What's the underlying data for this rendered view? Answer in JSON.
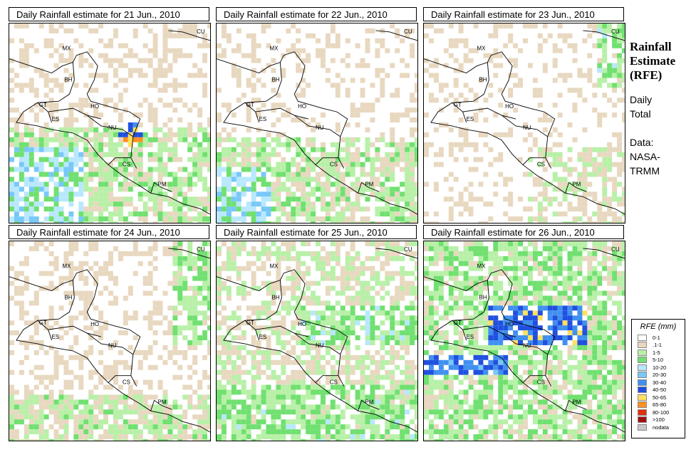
{
  "panels": [
    {
      "title": "Daily Rainfall estimate for  21 Jun., 2010",
      "variant": 1
    },
    {
      "title": "Daily Rainfall estimate for  22 Jun., 2010",
      "variant": 2
    },
    {
      "title": "Daily Rainfall estimate for  23 Jun., 2010",
      "variant": 3
    },
    {
      "title": "Daily Rainfall estimate for  24 Jun., 2010",
      "variant": 4
    },
    {
      "title": "Daily Rainfall estimate for  25 Jun., 2010",
      "variant": 5
    },
    {
      "title": "Daily Rainfall estimate for  26 Jun., 2010",
      "variant": 6
    }
  ],
  "countries": [
    "CU",
    "MX",
    "BH",
    "GT",
    "HO",
    "ES",
    "NU",
    "CS",
    "PM"
  ],
  "side": {
    "title_line1": "Rainfall",
    "title_line2": "Estimate",
    "title_line3": "(RFE)",
    "daily": "Daily",
    "total": "Total",
    "data": "Data:",
    "source1": "NASA-",
    "source2": "TRMM"
  },
  "legend": {
    "title": "RFE (mm)",
    "items": [
      {
        "label": "0-1",
        "color": "#ffffff"
      },
      {
        "label": ".1-1",
        "color": "#e8d8c0"
      },
      {
        "label": "1-5",
        "color": "#b8f0a8"
      },
      {
        "label": "5-10",
        "color": "#70e070"
      },
      {
        "label": "10-20",
        "color": "#b8e8ff"
      },
      {
        "label": "20-30",
        "color": "#78c8f8"
      },
      {
        "label": "30-40",
        "color": "#4090f0"
      },
      {
        "label": "40-50",
        "color": "#2050e0"
      },
      {
        "label": "50-65",
        "color": "#ffe060"
      },
      {
        "label": "65-80",
        "color": "#ff9020"
      },
      {
        "label": "80-100",
        "color": "#e03010"
      },
      {
        "label": ">100",
        "color": "#a01010"
      },
      {
        "label": "nodata",
        "color": "#c8c8c8"
      }
    ]
  }
}
